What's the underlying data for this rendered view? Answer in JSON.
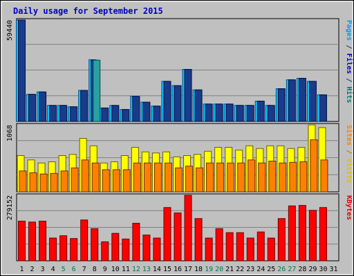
{
  "chart_data": {
    "type": "bar",
    "title": "Daily usage for September 2015",
    "days": [
      "1",
      "2",
      "3",
      "4",
      "5",
      "6",
      "7",
      "8",
      "9",
      "10",
      "11",
      "12",
      "13",
      "14",
      "15",
      "16",
      "17",
      "18",
      "19",
      "20",
      "21",
      "22",
      "23",
      "24",
      "25",
      "26",
      "27",
      "28",
      "29",
      "30",
      "31"
    ],
    "weekend_days": [
      5,
      6,
      12,
      13,
      19,
      20,
      26,
      27
    ],
    "panels": [
      {
        "id": "hits",
        "max_label": "59440",
        "ymax": 59440,
        "right_labels": [
          {
            "text": "Pages",
            "color": "#00a0e8"
          },
          {
            "text": " / ",
            "color": "#004080"
          },
          {
            "text": "Files",
            "color": "#0000d0"
          },
          {
            "text": " / ",
            "color": "#004080"
          },
          {
            "text": "Hits",
            "color": "#007a70"
          }
        ],
        "series": [
          {
            "name": "Hits",
            "color": "#00ccff",
            "edge": "#004a8f",
            "values": [
              59440,
              15900,
              17300,
              9400,
              9400,
              8600,
              18200,
              36200,
              7900,
              9400,
              7000,
              14700,
              11300,
              9000,
              23500,
              21000,
              30500,
              18500,
              10200,
              10200,
              10200,
              9400,
              9400,
              11900,
              9400,
              19200,
              24400,
              25300,
              23500,
              15600,
              0
            ]
          },
          {
            "name": "Files",
            "color": "#1a3a8a",
            "edge": "#001040",
            "values": [
              59440,
              15900,
              17300,
              9400,
              9400,
              8600,
              18200,
              35900,
              7900,
              9400,
              7000,
              14700,
              11300,
              9000,
              23500,
              21000,
              30500,
              18500,
              10200,
              10200,
              10200,
              9400,
              9400,
              11900,
              9400,
              19200,
              24400,
              25300,
              23500,
              15600,
              0
            ]
          },
          {
            "name": "Pages",
            "color": "#2aa0a0",
            "edge": "#004a4a",
            "values": [
              0,
              0,
              0,
              0,
              0,
              0,
              0,
              35900,
              0,
              0,
              0,
              0,
              0,
              0,
              0,
              0,
              0,
              0,
              0,
              0,
              0,
              0,
              0,
              0,
              0,
              0,
              0,
              0,
              0,
              0,
              0
            ]
          }
        ]
      },
      {
        "id": "visits",
        "max_label": "1068",
        "ymax": 1068,
        "right_labels": [
          {
            "text": "Sites",
            "color": "#ff8000"
          },
          {
            "text": " / ",
            "color": "#b08000"
          },
          {
            "text": "Visits",
            "color": "#e0c000"
          }
        ],
        "series": [
          {
            "name": "Visits",
            "color": "#ffff00",
            "edge": "#6a6000",
            "values": [
              578,
              509,
              460,
              479,
              578,
              597,
              853,
              734,
              460,
              479,
              578,
              710,
              637,
              620,
              637,
              558,
              578,
              597,
              647,
              710,
              710,
              667,
              734,
              691,
              734,
              734,
              691,
              710,
              1068,
              1025,
              0
            ]
          },
          {
            "name": "Sites",
            "color": "#ff8000",
            "edge": "#6a3000",
            "values": [
              333,
              304,
              284,
              294,
              333,
              382,
              509,
              460,
              353,
              353,
              353,
              460,
              460,
              460,
              460,
              382,
              410,
              382,
              460,
              460,
              460,
              460,
              509,
              460,
              490,
              460,
              470,
              480,
              830,
              509,
              0
            ]
          }
        ]
      },
      {
        "id": "kbytes",
        "max_label": "279152",
        "ymax": 279152,
        "right_labels": [
          {
            "text": "KBytes",
            "color": "#e00000"
          }
        ],
        "series": [
          {
            "name": "KBytes",
            "color": "#ff0000",
            "edge": "#6a0000",
            "values": [
              169000,
              165000,
              169000,
              97000,
              107000,
              95000,
              174000,
              137000,
              81000,
              117000,
              93000,
              160000,
              110000,
              97000,
              227000,
              204000,
              279152,
              180000,
              97000,
              137000,
              120000,
              120000,
              97000,
              123000,
              97000,
              180000,
              234000,
              236000,
              215000,
              227000,
              0
            ]
          }
        ]
      }
    ]
  }
}
